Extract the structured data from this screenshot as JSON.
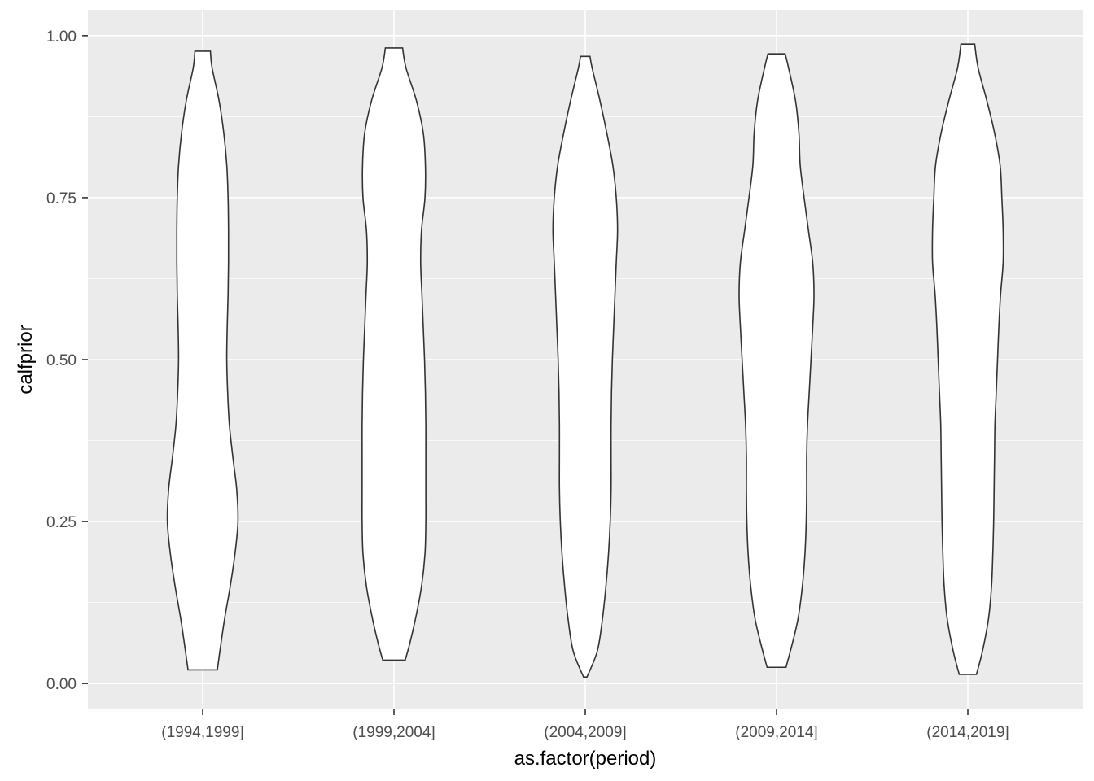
{
  "chart_data": {
    "type": "violin",
    "xlabel": "as.factor(period)",
    "ylabel": "calfprior",
    "ylim": [
      -0.04,
      1.04
    ],
    "yticks": [
      0.0,
      0.25,
      0.5,
      0.75,
      1.0
    ],
    "ytick_labels": [
      "0.00",
      "0.25",
      "0.50",
      "0.75",
      "1.00"
    ],
    "categories": [
      "(1994,1999]",
      "(1999,2004]",
      "(2004,2009]",
      "(2009,2014]",
      "(2014,2019]"
    ],
    "max_half_width_category_units": 0.45,
    "violins": [
      {
        "category": "(1994,1999]",
        "y_min": 0.021,
        "y_max": 0.976,
        "profile": [
          [
            0.021,
            0.17
          ],
          [
            0.05,
            0.2
          ],
          [
            0.1,
            0.255
          ],
          [
            0.15,
            0.32
          ],
          [
            0.2,
            0.375
          ],
          [
            0.25,
            0.41
          ],
          [
            0.3,
            0.395
          ],
          [
            0.35,
            0.35
          ],
          [
            0.4,
            0.31
          ],
          [
            0.45,
            0.29
          ],
          [
            0.5,
            0.28
          ],
          [
            0.55,
            0.285
          ],
          [
            0.6,
            0.295
          ],
          [
            0.65,
            0.3
          ],
          [
            0.7,
            0.3
          ],
          [
            0.75,
            0.295
          ],
          [
            0.8,
            0.28
          ],
          [
            0.85,
            0.245
          ],
          [
            0.9,
            0.19
          ],
          [
            0.95,
            0.11
          ],
          [
            0.976,
            0.09
          ]
        ]
      },
      {
        "category": "(1999,2004]",
        "y_min": 0.036,
        "y_max": 0.981,
        "profile": [
          [
            0.036,
            0.13
          ],
          [
            0.06,
            0.18
          ],
          [
            0.1,
            0.25
          ],
          [
            0.15,
            0.32
          ],
          [
            0.2,
            0.36
          ],
          [
            0.25,
            0.37
          ],
          [
            0.3,
            0.37
          ],
          [
            0.35,
            0.37
          ],
          [
            0.4,
            0.37
          ],
          [
            0.45,
            0.365
          ],
          [
            0.5,
            0.355
          ],
          [
            0.55,
            0.34
          ],
          [
            0.6,
            0.325
          ],
          [
            0.65,
            0.31
          ],
          [
            0.7,
            0.32
          ],
          [
            0.75,
            0.36
          ],
          [
            0.8,
            0.365
          ],
          [
            0.85,
            0.34
          ],
          [
            0.9,
            0.26
          ],
          [
            0.95,
            0.14
          ],
          [
            0.981,
            0.1
          ]
        ]
      },
      {
        "category": "(2004,2009]",
        "y_min": 0.01,
        "y_max": 0.968,
        "profile": [
          [
            0.01,
            0.02
          ],
          [
            0.05,
            0.14
          ],
          [
            0.1,
            0.2
          ],
          [
            0.15,
            0.24
          ],
          [
            0.2,
            0.27
          ],
          [
            0.25,
            0.29
          ],
          [
            0.3,
            0.3
          ],
          [
            0.35,
            0.3
          ],
          [
            0.4,
            0.3
          ],
          [
            0.45,
            0.305
          ],
          [
            0.5,
            0.315
          ],
          [
            0.55,
            0.33
          ],
          [
            0.6,
            0.345
          ],
          [
            0.65,
            0.36
          ],
          [
            0.7,
            0.375
          ],
          [
            0.75,
            0.36
          ],
          [
            0.8,
            0.32
          ],
          [
            0.85,
            0.25
          ],
          [
            0.9,
            0.17
          ],
          [
            0.95,
            0.08
          ],
          [
            0.968,
            0.055
          ]
        ]
      },
      {
        "category": "(2009,2014]",
        "y_min": 0.025,
        "y_max": 0.972,
        "profile": [
          [
            0.025,
            0.11
          ],
          [
            0.06,
            0.18
          ],
          [
            0.1,
            0.25
          ],
          [
            0.15,
            0.3
          ],
          [
            0.2,
            0.33
          ],
          [
            0.25,
            0.345
          ],
          [
            0.3,
            0.35
          ],
          [
            0.35,
            0.35
          ],
          [
            0.4,
            0.36
          ],
          [
            0.45,
            0.38
          ],
          [
            0.5,
            0.4
          ],
          [
            0.55,
            0.42
          ],
          [
            0.6,
            0.435
          ],
          [
            0.65,
            0.42
          ],
          [
            0.7,
            0.37
          ],
          [
            0.75,
            0.32
          ],
          [
            0.8,
            0.275
          ],
          [
            0.85,
            0.26
          ],
          [
            0.9,
            0.22
          ],
          [
            0.95,
            0.14
          ],
          [
            0.972,
            0.1
          ]
        ]
      },
      {
        "category": "(2014,2019]",
        "y_min": 0.014,
        "y_max": 0.987,
        "profile": [
          [
            0.014,
            0.1
          ],
          [
            0.05,
            0.17
          ],
          [
            0.1,
            0.24
          ],
          [
            0.15,
            0.275
          ],
          [
            0.2,
            0.29
          ],
          [
            0.25,
            0.3
          ],
          [
            0.3,
            0.305
          ],
          [
            0.35,
            0.31
          ],
          [
            0.4,
            0.315
          ],
          [
            0.45,
            0.33
          ],
          [
            0.5,
            0.345
          ],
          [
            0.55,
            0.36
          ],
          [
            0.6,
            0.38
          ],
          [
            0.65,
            0.41
          ],
          [
            0.7,
            0.41
          ],
          [
            0.75,
            0.395
          ],
          [
            0.8,
            0.375
          ],
          [
            0.85,
            0.31
          ],
          [
            0.9,
            0.22
          ],
          [
            0.95,
            0.12
          ],
          [
            0.987,
            0.08
          ]
        ]
      }
    ]
  },
  "colors": {
    "panel_background": "#ebebeb",
    "grid": "#ffffff",
    "violin_fill": "#ffffff",
    "violin_stroke": "#333333",
    "tick_text": "#4d4d4d",
    "title_text": "#000000"
  }
}
